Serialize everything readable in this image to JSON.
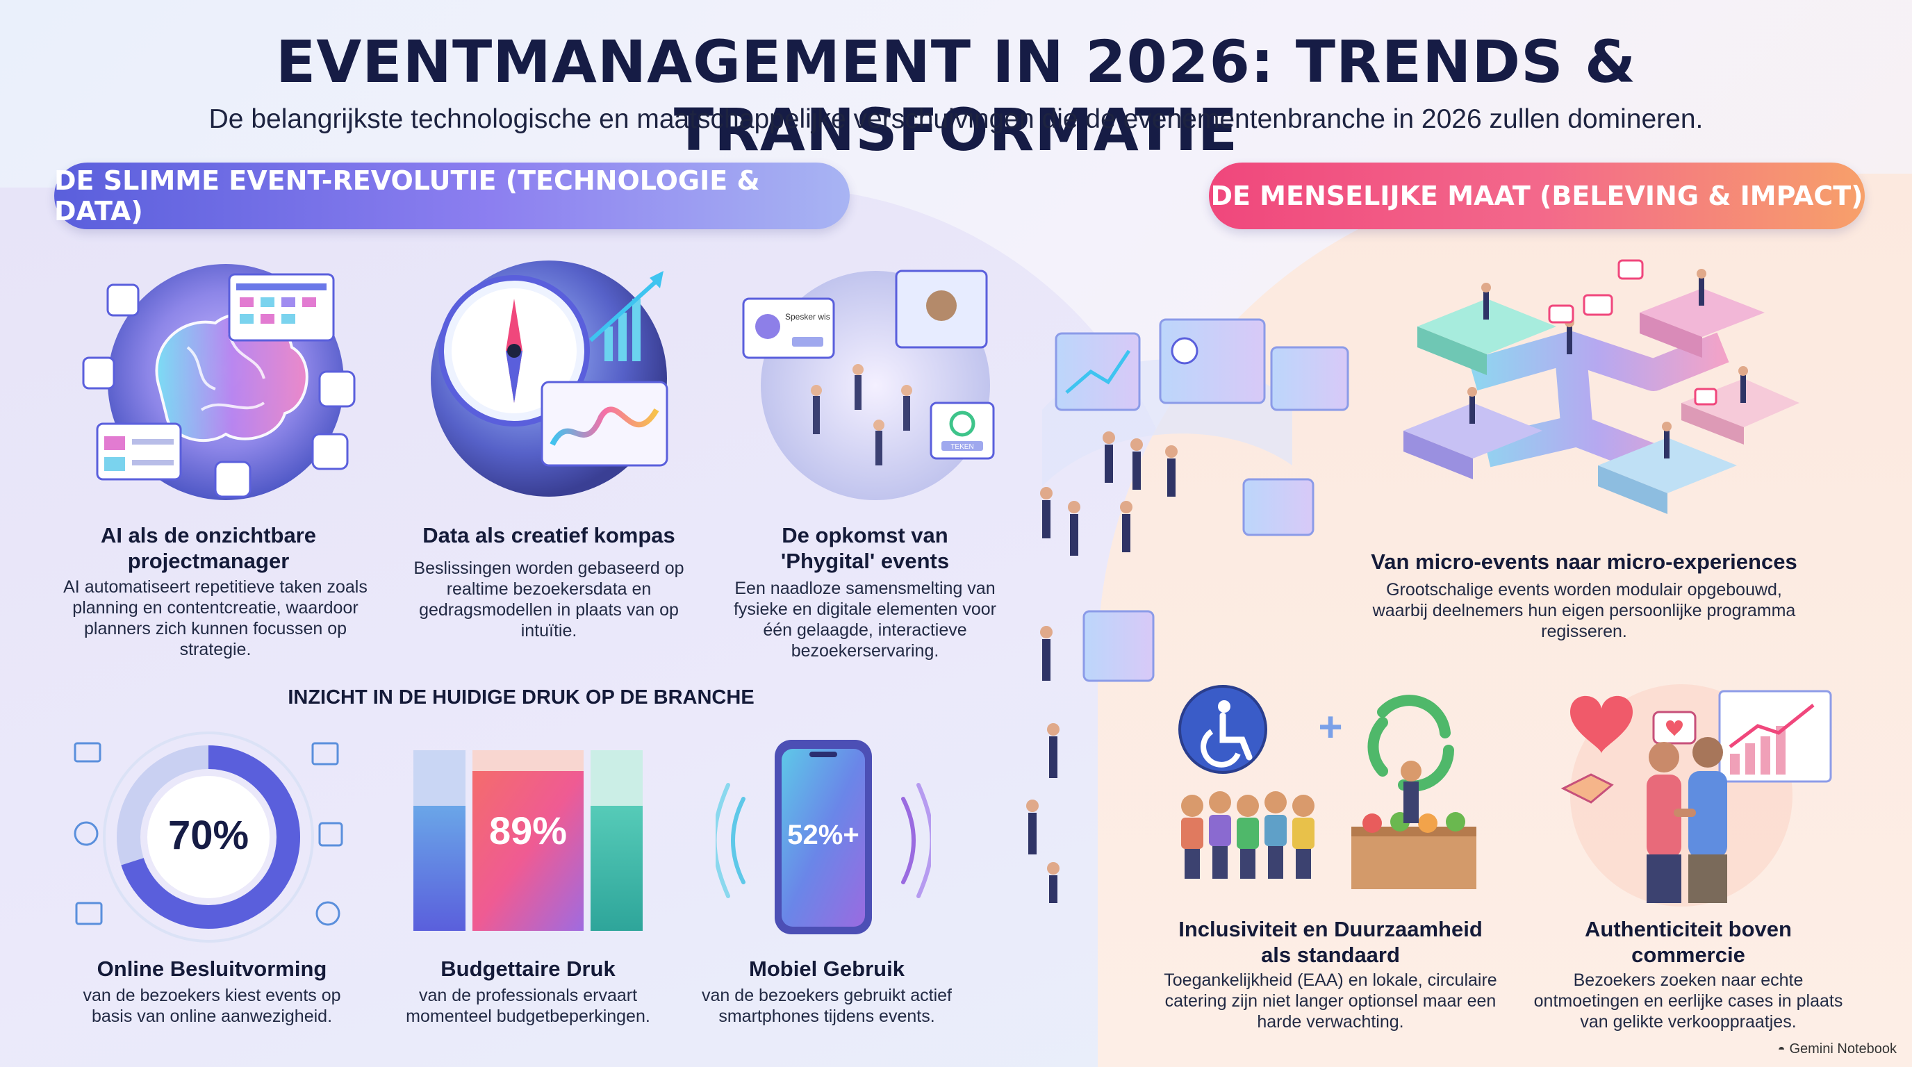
{
  "header": {
    "title": "EVENTMANAGEMENT IN 2026: TRENDS & TRANSFORMATIE",
    "subtitle": "De belangrijkste technologische en maatschappelijke verschuivingen die de evenementenbranche in 2026 zullen domineren."
  },
  "left_section": {
    "label": "DE SLIMME EVENT-REVOLUTIE (TECHNOLOGIE & DATA)",
    "cards": [
      {
        "title": "AI als de onzichtbare projectmanager",
        "desc": "AI automatiseert repetitieve taken zoals planning en contentcreatie, waardoor planners zich kunnen focussen op strategie.",
        "icon": "brain-icon"
      },
      {
        "title": "Data als creatief kompas",
        "desc": "Beslissingen worden gebaseerd op realtime bezoekersdata en gedragsmodellen in plaats van op intuïtie.",
        "icon": "compass-icon"
      },
      {
        "title": "De opkomst van 'Phygital' events",
        "desc": "Een naadloze samensmelting van fysieke en digitale elementen voor één gelaagde, interactieve bezoekerservaring.",
        "icon": "phygital-icon",
        "screen_label": "Spesker wis",
        "button_label": "TEKEN"
      }
    ],
    "insight_heading": "INZICHT IN DE HUIDIGE DRUK OP DE BRANCHE",
    "stats": [
      {
        "value": "70%",
        "fraction": 0.7,
        "title": "Online Besluitvorming",
        "desc": "van de bezoekers kiest events op basis van online aanwezigheid."
      },
      {
        "value": "89%",
        "fraction": 0.89,
        "title": "Budgettaire Druk",
        "desc": "van de professionals ervaart momenteel budgetbeperkingen."
      },
      {
        "value": "52%+",
        "fraction": 0.52,
        "title": "Mobiel Gebruik",
        "desc": "van de bezoekers gebruikt actief smartphones tijdens events."
      }
    ]
  },
  "right_section": {
    "label": "DE MENSELIJKE MAAT (BELEVING & IMPACT)",
    "cards": [
      {
        "title": "Van micro-events naar micro-experiences",
        "desc": "Grootschalige events worden modulair opgebouwd, waarbij deelnemers hun eigen persoonlijke programma regisseren."
      },
      {
        "title": "Inclusiviteit en Duurzaamheid als standaard",
        "desc": "Toegankelijkheid (EAA) en lokale, circulaire catering zijn niet langer optionsel maar een harde verwachting."
      },
      {
        "title": "Authenticiteit boven commercie",
        "desc": "Bezoekers zoeken naar echte ontmoetingen en eerlijke cases in plaats van gelikte verkooppraatjes."
      }
    ]
  },
  "footer": {
    "brand": "Gemini Notebook"
  },
  "colors": {
    "accent_blue": "#5a5fdc",
    "accent_pink": "#f0477c",
    "accent_orange": "#f7a06a",
    "dark_text": "#161c45"
  }
}
